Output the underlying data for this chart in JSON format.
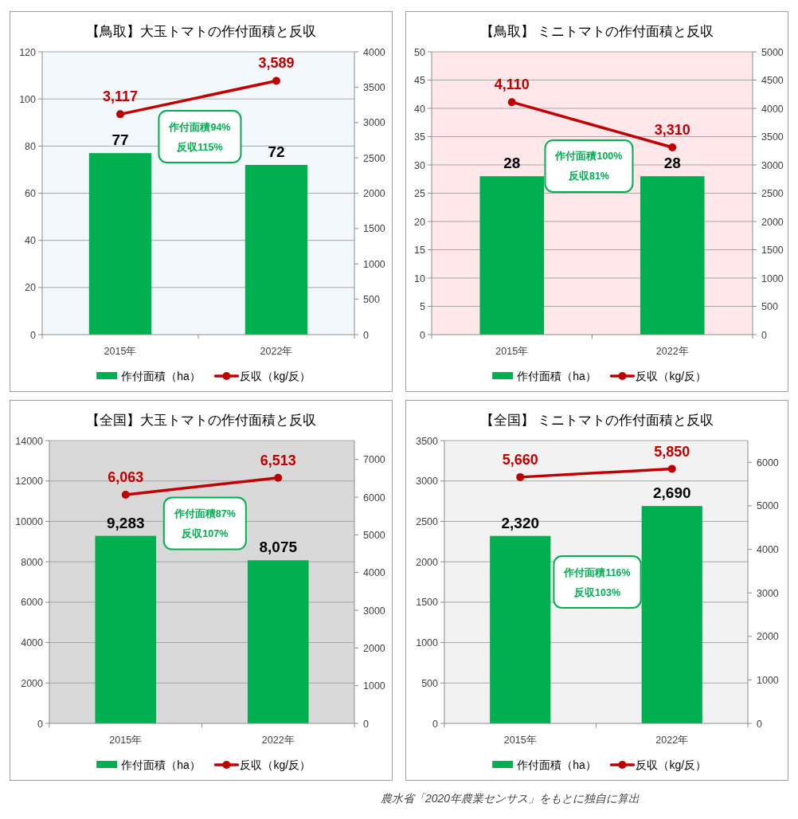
{
  "chart_data": [
    {
      "type": "bar",
      "title": "【鳥取】大玉トマトの作付面積と反収",
      "categories": [
        "2015年",
        "2022年"
      ],
      "series": [
        {
          "name": "作付面積（ha）",
          "color": "#00b050",
          "values": [
            77,
            72
          ],
          "value_labels": [
            "77",
            "72"
          ]
        },
        {
          "name": "反収（kg/反）",
          "type": "line",
          "axis": "y2",
          "color": "#c00000",
          "values": [
            3117,
            3589
          ],
          "value_labels": [
            "3,117",
            "3,589"
          ]
        }
      ],
      "ylim": [
        0,
        120
      ],
      "yticks": [
        0,
        20,
        40,
        60,
        80,
        100,
        120
      ],
      "y2lim": [
        0,
        4000
      ],
      "y2ticks": [
        0,
        500,
        1000,
        1500,
        2000,
        2500,
        3000,
        3500,
        4000
      ],
      "grid": "y",
      "legend": "bottom",
      "marker": "circle",
      "annotations": [
        "作付面積94%",
        "反収115%"
      ]
    },
    {
      "type": "bar",
      "title": "【鳥取】 ミニトマトの作付面積と反収",
      "categories": [
        "2015年",
        "2022年"
      ],
      "series": [
        {
          "name": "作付面積（ha）",
          "color": "#00b050",
          "values": [
            28,
            28
          ],
          "value_labels": [
            "28",
            "28"
          ]
        },
        {
          "name": "反収（kg/反）",
          "type": "line",
          "axis": "y2",
          "color": "#c00000",
          "values": [
            4110,
            3310
          ],
          "value_labels": [
            "4,110",
            "3,310"
          ]
        }
      ],
      "ylim": [
        0,
        50
      ],
      "yticks": [
        0,
        5,
        10,
        15,
        20,
        25,
        30,
        35,
        40,
        45,
        50
      ],
      "y2lim": [
        0,
        5000
      ],
      "y2ticks": [
        0,
        500,
        1000,
        1500,
        2000,
        2500,
        3000,
        3500,
        4000,
        4500,
        5000
      ],
      "grid": "y",
      "legend": "bottom",
      "marker": "circle",
      "annotations": [
        "作付面積100%",
        "反収81%"
      ]
    },
    {
      "type": "bar",
      "title": "【全国】大玉トマトの作付面積と反収",
      "categories": [
        "2015年",
        "2022年"
      ],
      "series": [
        {
          "name": "作付面積（ha）",
          "color": "#00b050",
          "values": [
            9283,
            8075
          ],
          "value_labels": [
            "9,283",
            "8,075"
          ]
        },
        {
          "name": "反収（kg/反）",
          "type": "line",
          "axis": "y2",
          "color": "#c00000",
          "values": [
            6063,
            6513
          ],
          "value_labels": [
            "6,063",
            "6,513"
          ]
        }
      ],
      "ylim": [
        0,
        14000
      ],
      "yticks": [
        0,
        2000,
        4000,
        6000,
        8000,
        10000,
        12000,
        14000
      ],
      "y2lim": [
        0,
        7500
      ],
      "y2ticks": [
        0,
        1000,
        2000,
        3000,
        4000,
        5000,
        6000,
        7000
      ],
      "grid": "y",
      "legend": "bottom",
      "marker": "circle",
      "annotations": [
        "作付面積87%",
        "反収107%"
      ]
    },
    {
      "type": "bar",
      "title": "【全国】 ミニトマトの作付面積と反収",
      "categories": [
        "2015年",
        "2022年"
      ],
      "series": [
        {
          "name": "作付面積（ha）",
          "color": "#00b050",
          "values": [
            2320,
            2690
          ],
          "value_labels": [
            "2,320",
            "2,690"
          ]
        },
        {
          "name": "反収（kg/反）",
          "type": "line",
          "axis": "y2",
          "color": "#c00000",
          "values": [
            5660,
            5850
          ],
          "value_labels": [
            "5,660",
            "5,850"
          ]
        }
      ],
      "ylim": [
        0,
        3500
      ],
      "yticks": [
        0,
        500,
        1000,
        1500,
        2000,
        2500,
        3000,
        3500
      ],
      "y2lim": [
        0,
        6500
      ],
      "y2ticks": [
        0,
        1000,
        2000,
        3000,
        4000,
        5000,
        6000
      ],
      "grid": "y",
      "legend": "bottom",
      "marker": "circle",
      "annotations": [
        "作付面積116%",
        "反収103%"
      ]
    },
    {
      "type": "other",
      "annotations": [
        "農水省「2020年農業センサス」をもとに独自に算出"
      ]
    }
  ]
}
